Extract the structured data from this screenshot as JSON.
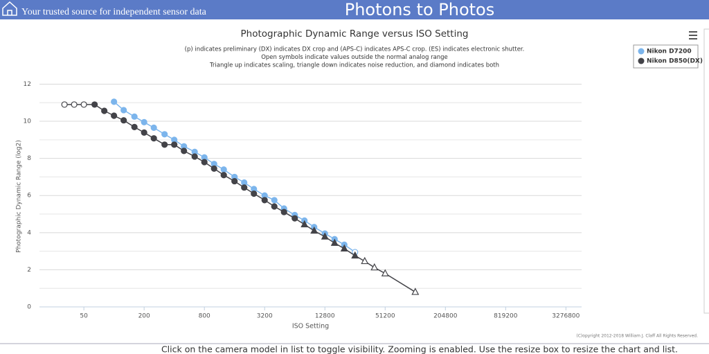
{
  "header": {
    "tagline": "Your trusted source for independent sensor data",
    "site_title": "Photons to Photos"
  },
  "chart_data": {
    "type": "line",
    "title": "Photographic Dynamic Range versus ISO Setting",
    "subtitle": [
      "(p) indicates preliminary (DX) indicates DX crop and (APS-C) indicates APS-C crop. (ES) indicates electronic shutter.",
      "Open symbols indicate values outside the normal analog range",
      "Triangle up indicates scaling, triangle down indicates noise reduction, and diamond indicates both"
    ],
    "x_label": "ISO Setting",
    "y_label": "Photographic Dynamic Range (log2)",
    "x_scale": "log",
    "xlim": [
      18,
      4700000
    ],
    "xticks": [
      50,
      200,
      800,
      3200,
      12800,
      51200,
      204800,
      819200,
      3276800
    ],
    "ylim": [
      0,
      12.8
    ],
    "yticks": [
      0,
      2,
      4,
      6,
      8,
      10,
      12
    ],
    "y_minor_ticks": [
      1,
      3,
      5,
      7,
      9,
      11
    ],
    "grid": true,
    "legend": "top-right",
    "series": [
      {
        "name": "Nikon D7200",
        "color": "#7cb5ec",
        "x": [
          100,
          125,
          160,
          200,
          250,
          320,
          400,
          500,
          640,
          800,
          1000,
          1250,
          1600,
          2000,
          2500,
          3200,
          4000,
          5000,
          6400,
          8000,
          10000,
          12800,
          16000,
          20000,
          25600
        ],
        "values": [
          11.05,
          10.6,
          10.25,
          9.95,
          9.65,
          9.3,
          9.0,
          8.65,
          8.35,
          8.05,
          7.7,
          7.4,
          7.0,
          6.7,
          6.35,
          6.0,
          5.75,
          5.3,
          4.95,
          4.65,
          4.3,
          3.95,
          3.65,
          3.35,
          2.95
        ],
        "markers": [
          "circle",
          "circle",
          "circle",
          "circle",
          "circle",
          "circle",
          "circle",
          "circle",
          "circle",
          "circle",
          "circle",
          "circle",
          "circle",
          "circle",
          "circle",
          "circle",
          "circle",
          "circle",
          "circle",
          "circle",
          "circle",
          "circle",
          "circle",
          "circle",
          "open-circle"
        ]
      },
      {
        "name": "Nikon D850(DX)",
        "color": "#434348",
        "x": [
          32,
          40,
          50,
          64,
          80,
          100,
          125,
          160,
          200,
          250,
          320,
          400,
          500,
          640,
          800,
          1000,
          1250,
          1600,
          2000,
          2500,
          3200,
          4000,
          5000,
          6400,
          8000,
          10000,
          12800,
          16000,
          20000,
          25600,
          32000,
          40000,
          51200,
          102400
        ],
        "values": [
          10.9,
          10.9,
          10.9,
          10.9,
          10.56,
          10.3,
          10.05,
          9.69,
          9.39,
          9.08,
          8.74,
          8.74,
          8.4,
          8.1,
          7.8,
          7.45,
          7.1,
          6.77,
          6.43,
          6.1,
          5.75,
          5.41,
          5.11,
          4.77,
          4.44,
          4.1,
          3.78,
          3.44,
          3.14,
          2.76,
          2.46,
          2.12,
          1.8,
          0.8
        ],
        "markers": [
          "open-circle",
          "open-circle",
          "open-circle",
          "circle",
          "circle",
          "circle",
          "circle",
          "circle",
          "circle",
          "circle",
          "circle",
          "circle",
          "circle",
          "circle",
          "circle",
          "circle",
          "circle",
          "circle",
          "circle",
          "circle",
          "circle",
          "circle",
          "circle",
          "circle",
          "triangle",
          "triangle",
          "triangle",
          "triangle",
          "triangle",
          "triangle",
          "open-triangle",
          "open-triangle",
          "open-triangle",
          "open-triangle"
        ]
      }
    ],
    "credits": "(C)opyright 2012-2018 William J. Claff All Rights Reserved."
  },
  "footer": "Click on the camera model in list to toggle visibility. Zooming is enabled. Use the resize box to resize the chart and list."
}
